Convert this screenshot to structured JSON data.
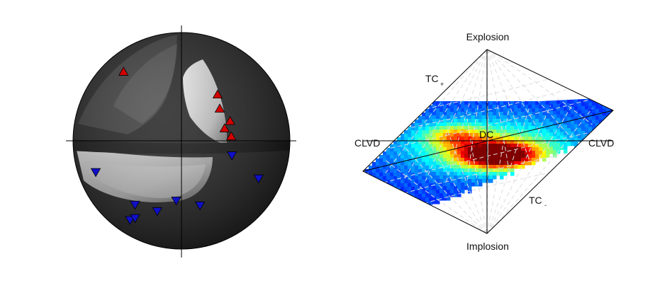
{
  "beachball_panel": {
    "pressure_color": "#d40000",
    "tension_color": "#1010c8",
    "compressional_markers": [
      {
        "azimuth_deg": 320,
        "takeoff_deg": 72
      },
      {
        "azimuth_deg": 38,
        "takeoff_deg": 45
      },
      {
        "azimuth_deg": 50,
        "takeoff_deg": 38
      },
      {
        "azimuth_deg": 68,
        "takeoff_deg": 40
      },
      {
        "azimuth_deg": 74,
        "takeoff_deg": 34
      },
      {
        "azimuth_deg": 85,
        "takeoff_deg": 38
      }
    ],
    "dilatational_markers": [
      {
        "azimuth_deg": 250,
        "takeoff_deg": 73
      },
      {
        "azimuth_deg": 213,
        "takeoff_deg": 76
      },
      {
        "azimuth_deg": 211,
        "takeoff_deg": 72
      },
      {
        "azimuth_deg": 216,
        "takeoff_deg": 62
      },
      {
        "azimuth_deg": 199,
        "takeoff_deg": 58
      },
      {
        "azimuth_deg": 185,
        "takeoff_deg": 46
      },
      {
        "azimuth_deg": 164,
        "takeoff_deg": 52
      },
      {
        "azimuth_deg": 116,
        "takeoff_deg": 68
      },
      {
        "azimuth_deg": 106,
        "takeoff_deg": 40
      }
    ]
  },
  "source_type_panel": {
    "labels": {
      "top": "Explosion",
      "bottom": "Implosion",
      "left": "CLVD",
      "right": "CLVD",
      "center": "DC",
      "tc_plus": "TC",
      "tc_plus_sign": "+",
      "tc_minus": "TC",
      "tc_minus_sign": "-"
    },
    "colormap": "jet"
  }
}
